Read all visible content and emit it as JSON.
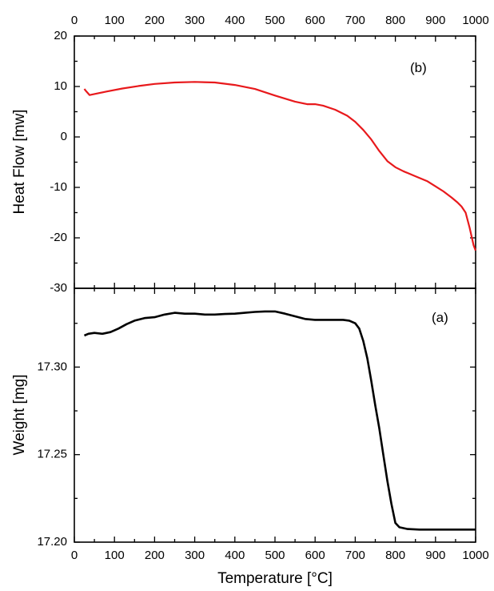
{
  "chart_data": [
    {
      "type": "line",
      "panel_label": "(b)",
      "ylabel": "Heat Flow [mw]",
      "xlim": [
        0,
        1000
      ],
      "ylim": [
        -30,
        20
      ],
      "x_ticks": [
        0,
        100,
        200,
        300,
        400,
        500,
        600,
        700,
        800,
        900,
        1000
      ],
      "y_ticks": [
        -30,
        -20,
        -10,
        0,
        10,
        20
      ],
      "x_tick_labels_top": true,
      "grid": false,
      "series": [
        {
          "color": "#e8191c",
          "x": [
            25,
            30,
            38,
            50,
            80,
            120,
            160,
            200,
            250,
            300,
            350,
            400,
            450,
            500,
            550,
            580,
            600,
            620,
            650,
            680,
            700,
            720,
            740,
            760,
            780,
            800,
            820,
            850,
            880,
            900,
            920,
            940,
            955,
            965,
            975,
            985,
            995,
            1000
          ],
          "y": [
            9.5,
            9.0,
            8.3,
            8.5,
            9.0,
            9.6,
            10.1,
            10.5,
            10.8,
            10.9,
            10.8,
            10.3,
            9.5,
            8.2,
            7.0,
            6.5,
            6.5,
            6.2,
            5.4,
            4.2,
            3.0,
            1.4,
            -0.5,
            -2.8,
            -4.8,
            -6.0,
            -6.8,
            -7.8,
            -8.8,
            -9.8,
            -10.8,
            -12.0,
            -13.0,
            -13.8,
            -15.0,
            -18.0,
            -21.5,
            -22.5
          ]
        }
      ]
    },
    {
      "type": "line",
      "panel_label": "(a)",
      "ylabel": "Weight [mg]",
      "xlabel": "Temperature [°C]",
      "xlim": [
        0,
        1000
      ],
      "ylim": [
        17.2,
        17.345
      ],
      "x_ticks": [
        0,
        100,
        200,
        300,
        400,
        500,
        600,
        700,
        800,
        900,
        1000
      ],
      "y_ticks": [
        17.2,
        17.25,
        17.3
      ],
      "y_tick_labels": [
        "17.20",
        "17.25",
        "17.30"
      ],
      "grid": false,
      "series": [
        {
          "color": "#000000",
          "x": [
            25,
            35,
            50,
            70,
            90,
            110,
            130,
            150,
            175,
            200,
            225,
            250,
            275,
            300,
            325,
            350,
            375,
            400,
            425,
            450,
            475,
            500,
            525,
            550,
            575,
            600,
            625,
            650,
            670,
            685,
            700,
            710,
            720,
            730,
            740,
            750,
            760,
            770,
            780,
            790,
            800,
            810,
            830,
            860,
            900,
            950,
            1000
          ],
          "y": [
            17.318,
            17.319,
            17.3195,
            17.319,
            17.32,
            17.322,
            17.3245,
            17.3265,
            17.328,
            17.3285,
            17.33,
            17.331,
            17.3305,
            17.3305,
            17.33,
            17.33,
            17.3303,
            17.3305,
            17.331,
            17.3315,
            17.3318,
            17.3318,
            17.3305,
            17.329,
            17.3275,
            17.327,
            17.327,
            17.327,
            17.327,
            17.3265,
            17.325,
            17.322,
            17.315,
            17.305,
            17.292,
            17.278,
            17.265,
            17.25,
            17.235,
            17.222,
            17.211,
            17.2085,
            17.2075,
            17.2072,
            17.2072,
            17.2072,
            17.2072
          ]
        }
      ]
    }
  ]
}
